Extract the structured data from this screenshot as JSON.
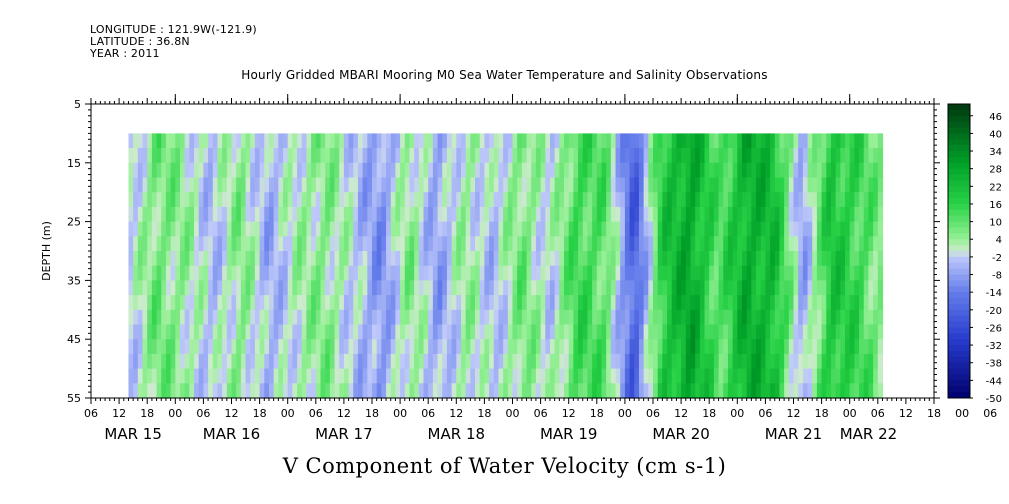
{
  "header": {
    "longitude": "LONGITUDE : 121.9W(-121.9)",
    "latitude": "LATITUDE : 36.8N",
    "year": "YEAR : 2011",
    "title": "Hourly Gridded MBARI Mooring M0 Sea Water Temperature and Salinity Observations"
  },
  "chart_data": {
    "type": "heatmap",
    "title": "Hourly Gridded MBARI Mooring M0 Sea Water Temperature and Salinity Observations",
    "subtitle": "V Component of Water Velocity (cm s-1)",
    "ylabel": "DEPTH (m)",
    "xlabel": "",
    "y_range": [
      5,
      55
    ],
    "y_inverted": true,
    "y_ticks": [
      5,
      15,
      25,
      35,
      45,
      55
    ],
    "y_tick_labels": [
      "5",
      "15",
      "25",
      "35",
      "45",
      "55"
    ],
    "x_range_hours": [
      0,
      180
    ],
    "hour_tick_labels": [
      "06",
      "12",
      "18",
      "00",
      "06",
      "12",
      "18",
      "00",
      "06",
      "12",
      "18",
      "00",
      "06",
      "12",
      "18",
      "00",
      "06",
      "12",
      "18",
      "00",
      "06",
      "12",
      "18",
      "00",
      "06",
      "12",
      "18",
      "00",
      "06",
      "12",
      "18",
      "00",
      "06"
    ],
    "date_labels": [
      {
        "label": "MAR 15",
        "center_hour": 9
      },
      {
        "label": "MAR 16",
        "center_hour": 30
      },
      {
        "label": "MAR 17",
        "center_hour": 54
      },
      {
        "label": "MAR 18",
        "center_hour": 78
      },
      {
        "label": "MAR 19",
        "center_hour": 102
      },
      {
        "label": "MAR 20",
        "center_hour": 126
      },
      {
        "label": "MAR 21",
        "center_hour": 150
      },
      {
        "label": "MAR 22",
        "center_hour": 166
      }
    ],
    "data_extent": {
      "depth_min": 10,
      "depth_max": 55,
      "hour_start": 8,
      "hour_end": 169
    },
    "colorbar": {
      "labels": [
        "46",
        "40",
        "34",
        "28",
        "22",
        "16",
        "10",
        "4",
        "-2",
        "-8",
        "-14",
        "-20",
        "-26",
        "-32",
        "-38",
        "-44",
        "-50"
      ],
      "min": -50,
      "max": 50,
      "step": 2
    },
    "approx_v_by_time": [
      {
        "hour": 9,
        "v": -2
      },
      {
        "hour": 14,
        "v": 8
      },
      {
        "hour": 20,
        "v": 4
      },
      {
        "hour": 26,
        "v": -4
      },
      {
        "hour": 32,
        "v": 6
      },
      {
        "hour": 38,
        "v": -6
      },
      {
        "hour": 44,
        "v": 2
      },
      {
        "hour": 50,
        "v": 6
      },
      {
        "hour": 56,
        "v": -2
      },
      {
        "hour": 62,
        "v": -10
      },
      {
        "hour": 68,
        "v": 6
      },
      {
        "hour": 74,
        "v": -8
      },
      {
        "hour": 80,
        "v": 4
      },
      {
        "hour": 86,
        "v": -4
      },
      {
        "hour": 92,
        "v": 8
      },
      {
        "hour": 98,
        "v": -2
      },
      {
        "hour": 104,
        "v": 14
      },
      {
        "hour": 110,
        "v": 10
      },
      {
        "hour": 116,
        "v": -22
      },
      {
        "hour": 122,
        "v": 18
      },
      {
        "hour": 128,
        "v": 28
      },
      {
        "hour": 134,
        "v": 10
      },
      {
        "hour": 140,
        "v": 26
      },
      {
        "hour": 146,
        "v": 22
      },
      {
        "hour": 152,
        "v": -8
      },
      {
        "hour": 158,
        "v": 20
      },
      {
        "hour": 164,
        "v": 14
      },
      {
        "hour": 168,
        "v": 6
      }
    ]
  }
}
